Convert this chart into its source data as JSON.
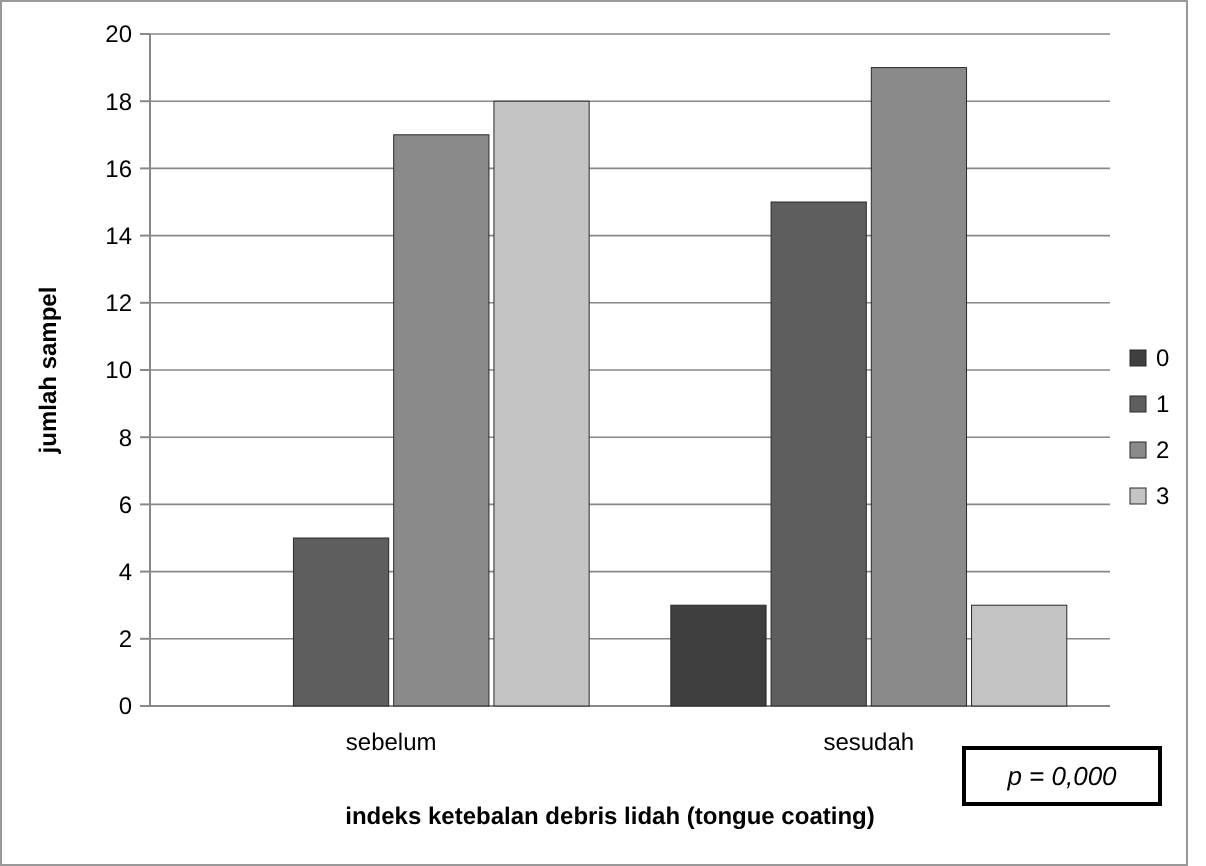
{
  "chart_data": {
    "type": "bar",
    "xlabel": "indeks ketebalan debris lidah (tongue coating)",
    "ylabel": "jumlah sampel",
    "categories": [
      "sebelum",
      "sesudah"
    ],
    "series": [
      {
        "name": "0",
        "color": "#3f3f3f",
        "values": [
          0,
          3
        ]
      },
      {
        "name": "1",
        "color": "#5e5e5e",
        "values": [
          5,
          15
        ]
      },
      {
        "name": "2",
        "color": "#8a8a8a",
        "values": [
          17,
          19
        ]
      },
      {
        "name": "3",
        "color": "#c4c4c4",
        "values": [
          18,
          3
        ]
      }
    ],
    "ylim": [
      0,
      20
    ],
    "yticks": [
      0,
      2,
      4,
      6,
      8,
      10,
      12,
      14,
      16,
      18,
      20
    ],
    "grid": "y",
    "legend": "right",
    "annotations": [
      "p = 0,000"
    ]
  }
}
